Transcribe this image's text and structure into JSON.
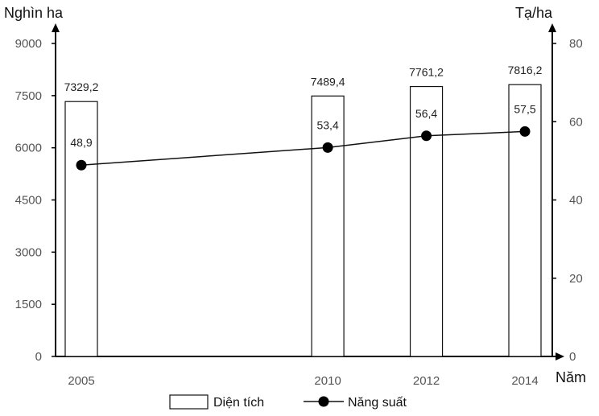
{
  "chart_data": {
    "type": "bar-line combo",
    "categories": [
      "2005",
      "2010",
      "2012",
      "2014"
    ],
    "x": [
      2005,
      2010,
      2012,
      2014
    ],
    "series": [
      {
        "name": "Diện tích",
        "type": "bar",
        "axis": "left",
        "values": [
          7329.2,
          7489.4,
          7761.2,
          7816.2
        ],
        "labels": [
          "7329,2",
          "7489,4",
          "7761,2",
          "7816,2"
        ]
      },
      {
        "name": "Năng suất",
        "type": "line",
        "axis": "right",
        "values": [
          48.9,
          53.4,
          56.4,
          57.5
        ],
        "labels": [
          "48,9",
          "53,4",
          "56,4",
          "57,5"
        ]
      }
    ],
    "y_left": {
      "label": "Nghìn ha",
      "ylim": [
        0,
        9000
      ],
      "ticks": [
        "0",
        "1500",
        "3000",
        "4500",
        "6000",
        "7500",
        "9000"
      ]
    },
    "y_right": {
      "label": "Tạ/ha",
      "ylim": [
        0,
        80
      ],
      "ticks": [
        "0",
        "20",
        "40",
        "60",
        "80"
      ]
    },
    "xlabel": "Năm",
    "legend": {
      "placement": "bottom-center",
      "items": [
        "Diện tích",
        "Năng suất"
      ]
    },
    "grid": false
  }
}
